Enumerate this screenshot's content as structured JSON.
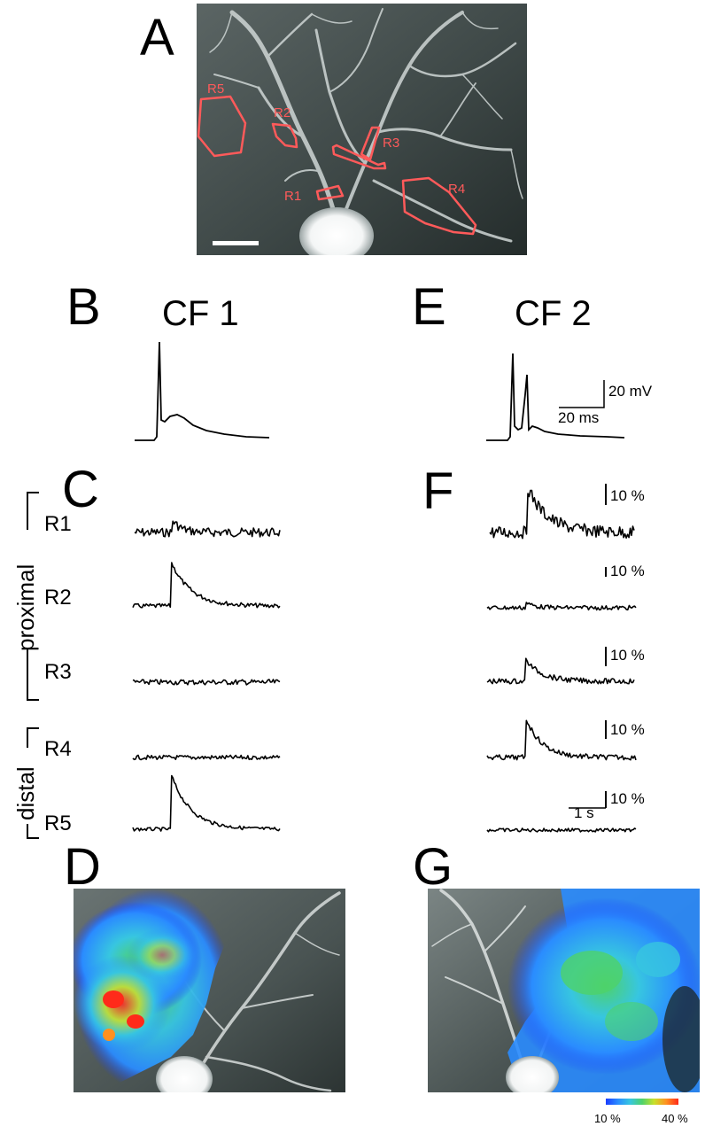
{
  "panels": {
    "A": "A",
    "B": "B",
    "C": "C",
    "D": "D",
    "E": "E",
    "F": "F",
    "G": "G"
  },
  "titles": {
    "cf1": "CF 1",
    "cf2": "CF 2"
  },
  "roi_labels_image": [
    "R5",
    "R2",
    "R3",
    "R1",
    "R4"
  ],
  "rows": [
    {
      "id": "R1",
      "label": "R1"
    },
    {
      "id": "R2",
      "label": "R2"
    },
    {
      "id": "R3",
      "label": "R3"
    },
    {
      "id": "R4",
      "label": "R4"
    },
    {
      "id": "R5",
      "label": "R5"
    }
  ],
  "groups": {
    "proximal": "proximal",
    "distal": "distal"
  },
  "scale_bars": {
    "voltage": "20 mV",
    "time_ms": "20 ms",
    "percent": "10 %",
    "time_s": "1 s"
  },
  "colorbar": {
    "min_label": "10 %",
    "max_label": "40 %"
  },
  "colors": {
    "roi_outline": "#ff5a5a",
    "trace": "#000000",
    "cmap": [
      "#1a3cff",
      "#2a8cff",
      "#37c6e0",
      "#4ed26a",
      "#c8e02a",
      "#ff9020",
      "#ff2a1a"
    ]
  }
}
